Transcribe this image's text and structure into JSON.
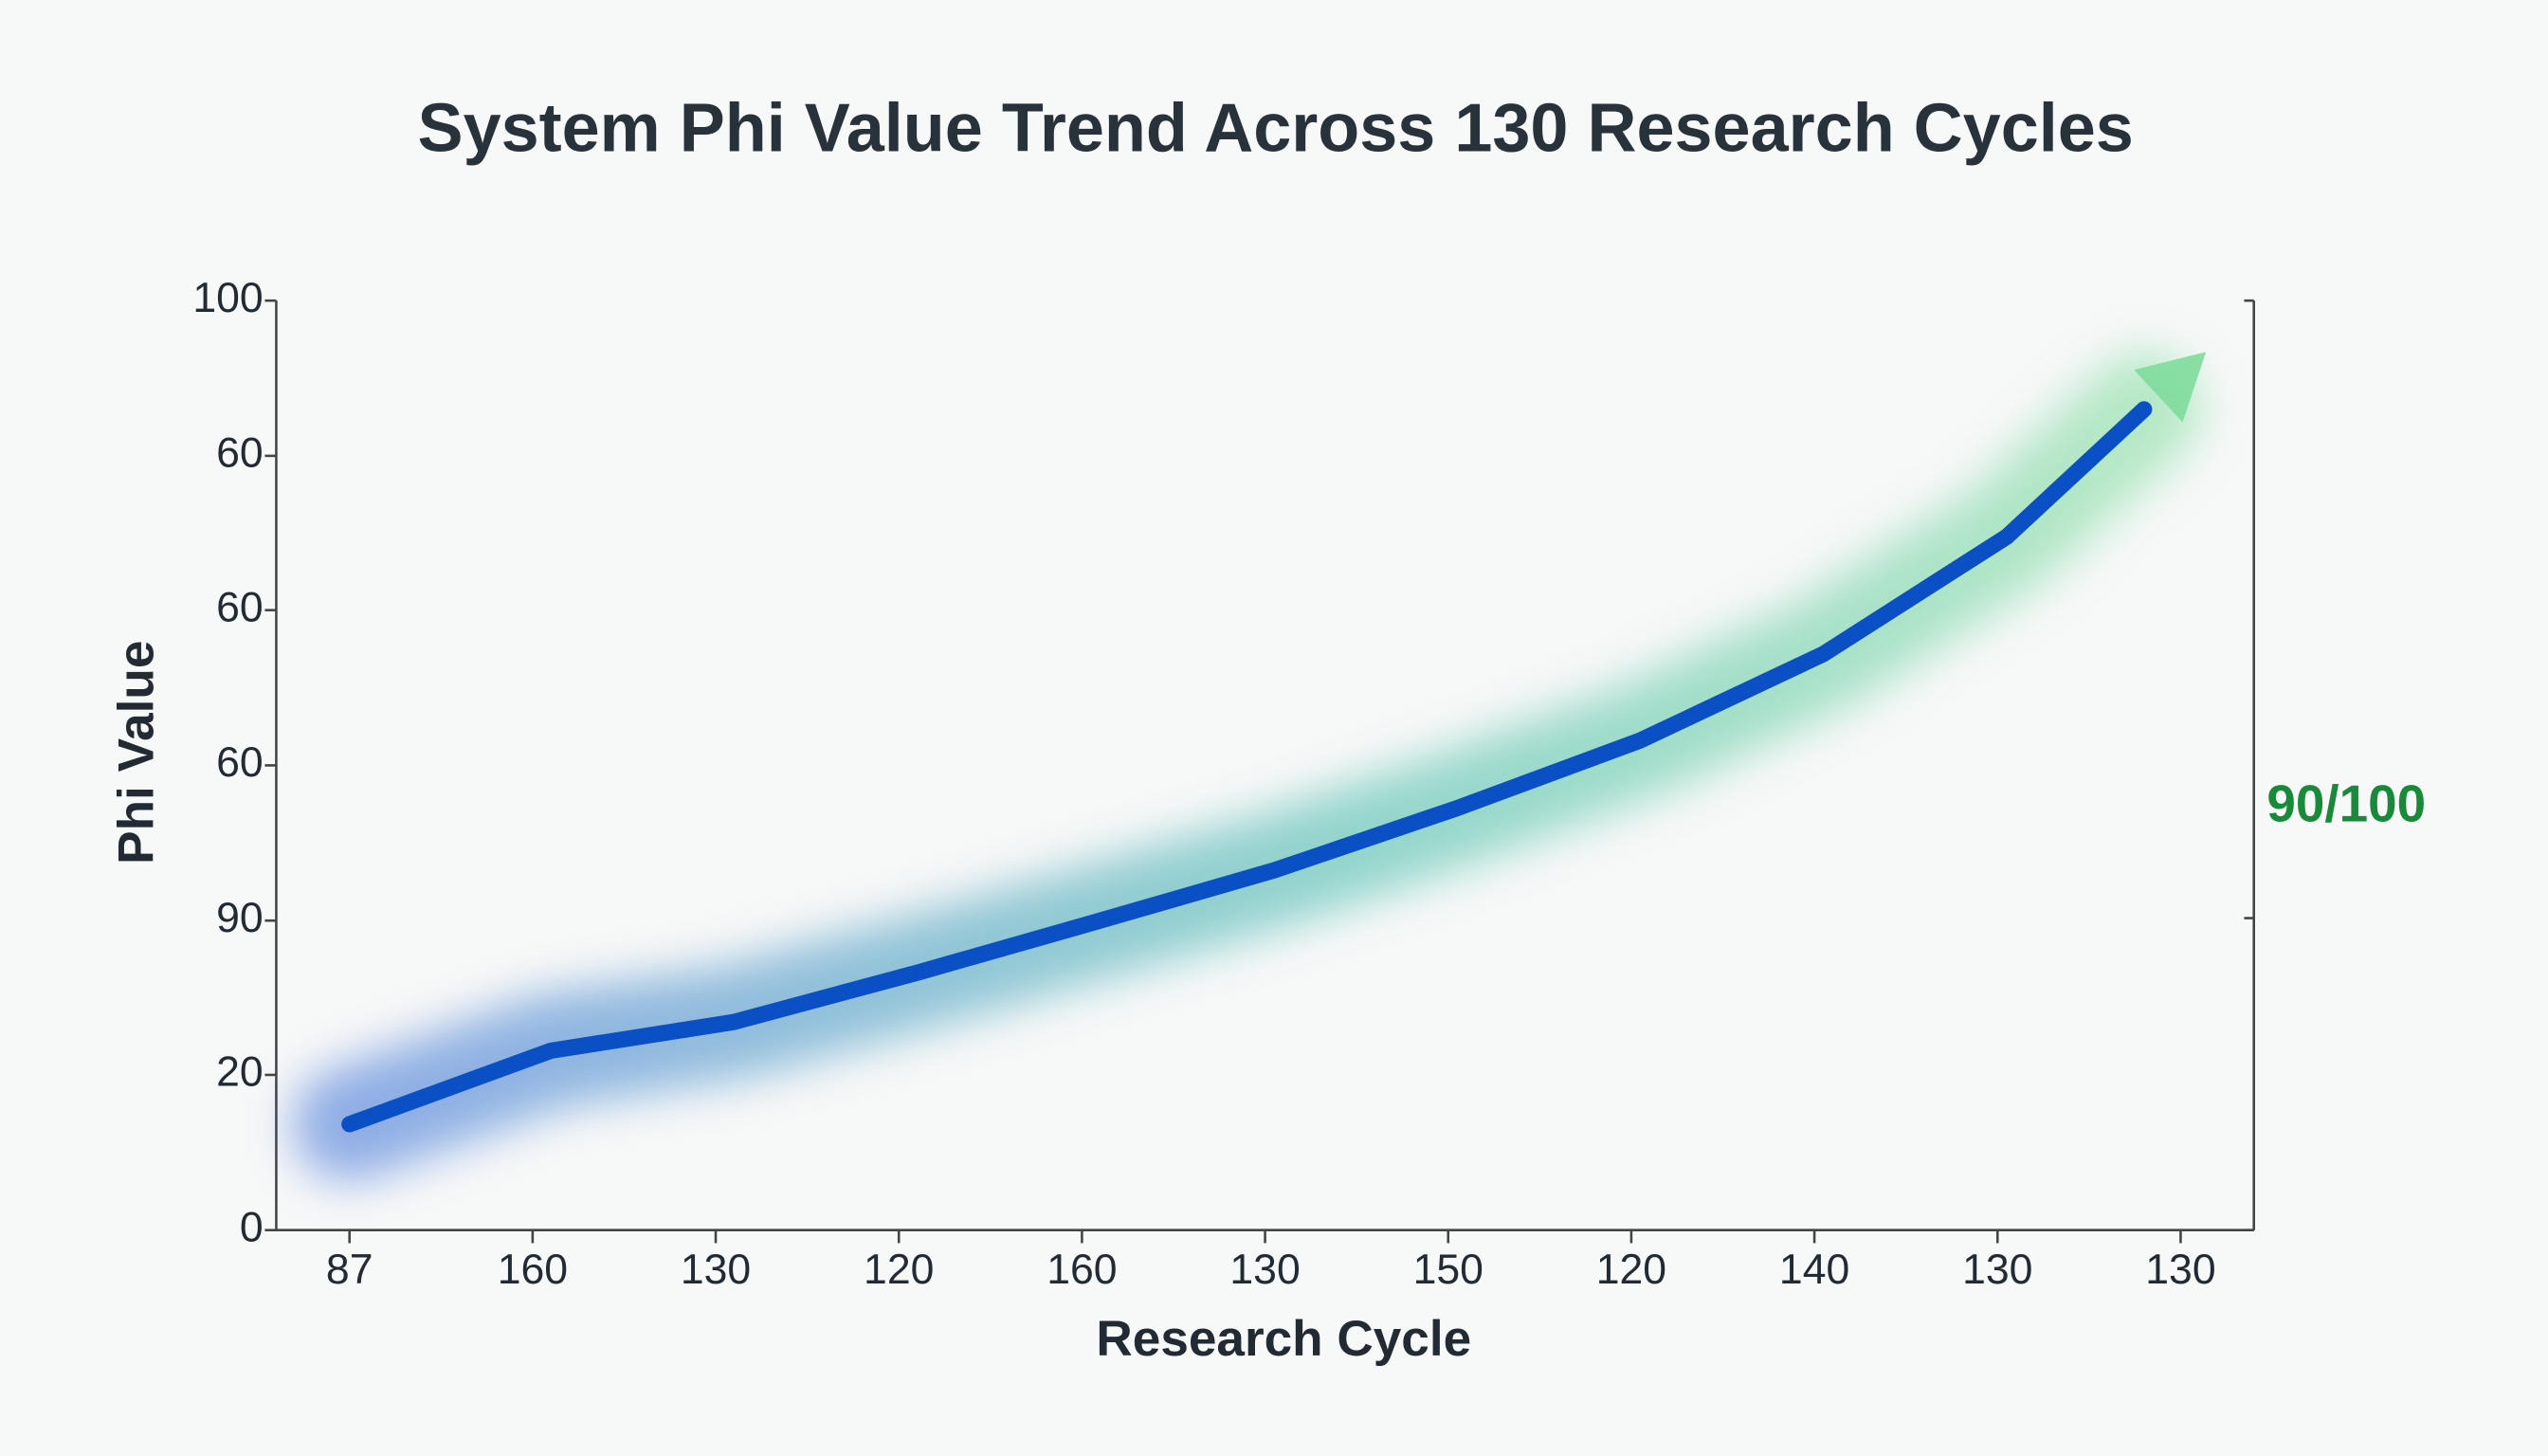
{
  "chart_data": {
    "type": "line",
    "title": "System Phi Value Trend Across 130 Research Cycles",
    "xlabel": "Research Cycle",
    "ylabel": "Phi Value",
    "annotation": "90/100",
    "color": "#0a4fc4",
    "glow_colors": [
      "#3a6fd8",
      "#3fb8a8",
      "#7fdc9c"
    ],
    "annotation_color": "#1a8a3a",
    "x": [
      0,
      1.1,
      2.1,
      3.1,
      4.1,
      5.05,
      6.05,
      7.05,
      8.05,
      9.05,
      9.8
    ],
    "values": [
      11.4,
      19.3,
      22.4,
      27.7,
      33.3,
      38.7,
      45.4,
      52.7,
      62.0,
      74.6,
      88.3
    ],
    "xlim": [
      -0.4,
      10.4
    ],
    "ylim": [
      0,
      100
    ],
    "xticks": [
      {
        "value": 0,
        "label": "87"
      },
      {
        "value": 1,
        "label": "160"
      },
      {
        "value": 2,
        "label": "130"
      },
      {
        "value": 3,
        "label": "120"
      },
      {
        "value": 4,
        "label": "160"
      },
      {
        "value": 5,
        "label": "130"
      },
      {
        "value": 6,
        "label": "150"
      },
      {
        "value": 7,
        "label": "120"
      },
      {
        "value": 8,
        "label": "140"
      },
      {
        "value": 9,
        "label": "130"
      },
      {
        "value": 10,
        "label": "130"
      }
    ],
    "yticks": [
      0,
      {
        "value": 16.7,
        "label": "20"
      },
      {
        "value": 33.3,
        "label": "90"
      },
      {
        "value": 50,
        "label": "60"
      },
      {
        "value": 66.7,
        "label": "60"
      },
      {
        "value": 83.3,
        "label": "60"
      },
      100
    ]
  }
}
